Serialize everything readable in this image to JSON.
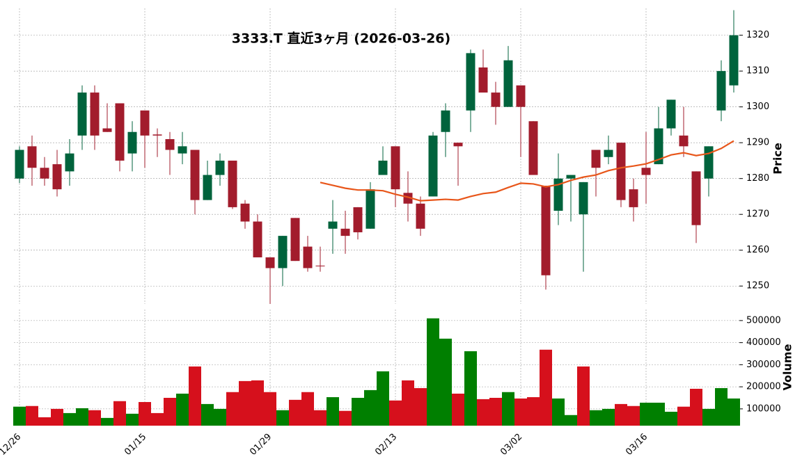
{
  "chart_data": {
    "type": "candlestick",
    "title": "3333.T  直近3ヶ月 (2026-03-26)",
    "categories": [
      "12/26",
      null,
      null,
      null,
      null,
      null,
      null,
      null,
      null,
      null,
      "01/15",
      null,
      null,
      null,
      null,
      null,
      null,
      null,
      null,
      null,
      "01/29",
      null,
      null,
      null,
      null,
      null,
      null,
      null,
      null,
      null,
      "02/13",
      null,
      null,
      null,
      null,
      null,
      null,
      null,
      null,
      null,
      "03/02",
      null,
      null,
      null,
      null,
      null,
      null,
      null,
      null,
      null,
      "03/16",
      null,
      null,
      null,
      null,
      null,
      null,
      null
    ],
    "open": [
      1280,
      1289,
      1283,
      1284,
      1282,
      1292,
      1304,
      1294,
      1301,
      1287,
      1299,
      1292.3,
      1291,
      1287,
      1288,
      1274,
      1281,
      1285,
      1273,
      1268,
      1258,
      1255,
      1269,
      1261,
      1255.7,
      1266,
      1266,
      1272,
      1266,
      1281,
      1289,
      1276,
      1273,
      1275,
      1293,
      1290,
      1299,
      1311,
      1304,
      1300,
      1306,
      1296,
      1278,
      1271,
      1280,
      1270,
      1288,
      1286,
      1290,
      1277,
      1283,
      1284,
      1294,
      1292,
      1282,
      1280,
      1299,
      1306
    ],
    "high": [
      1289,
      1292,
      1286,
      1288,
      1291,
      1306,
      1306,
      1301,
      1301,
      1296,
      1299,
      1294,
      1293,
      1293,
      1288,
      1285,
      1287,
      1285,
      1274,
      1270,
      1258,
      1264,
      1269,
      1264,
      1261,
      1274,
      1271,
      1272,
      1279,
      1289,
      1289,
      1282,
      1275,
      1293,
      1301,
      1290,
      1316,
      1316,
      1307,
      1317,
      1306,
      1296,
      1278,
      1287,
      1281,
      1279,
      1288,
      1292,
      1290,
      1280,
      1293,
      1300,
      1302,
      1300,
      1282,
      1289,
      1313,
      1327
    ],
    "low": [
      1278.7,
      1278,
      1278,
      1275,
      1278,
      1288,
      1288,
      1293,
      1282,
      1282,
      1283,
      1286,
      1281,
      1284,
      1270,
      1274,
      1278,
      1271.5,
      1266,
      1258,
      1245,
      1250,
      1257,
      1254,
      1254,
      1259,
      1259,
      1263,
      1266,
      1281,
      1272,
      1268,
      1264,
      1275,
      1286,
      1278,
      1293,
      1304,
      1295,
      1300,
      1286,
      1281,
      1249,
      1267,
      1268,
      1254,
      1275,
      1284,
      1272,
      1268,
      1273,
      1284,
      1292,
      1286,
      1262,
      1275,
      1296,
      1304
    ],
    "close": [
      1288,
      1283,
      1280,
      1277,
      1287,
      1304,
      1292,
      1293,
      1285,
      1293,
      1292,
      1292,
      1288,
      1289,
      1274,
      1281,
      1285,
      1272,
      1268,
      1258,
      1255,
      1264,
      1257,
      1255,
      1255.5,
      1268,
      1264,
      1265,
      1277,
      1285,
      1277,
      1273,
      1266,
      1292,
      1299,
      1289,
      1315,
      1304,
      1300,
      1313,
      1300,
      1281,
      1253,
      1280,
      1281,
      1279,
      1283,
      1288,
      1274,
      1272,
      1281,
      1294,
      1302,
      1289,
      1267,
      1289,
      1310,
      1320
    ],
    "up_color": "#00633c",
    "down_color": "#a21c2c",
    "ma": {
      "color": "#e8561a",
      "values": [
        null,
        null,
        null,
        null,
        null,
        null,
        null,
        null,
        null,
        null,
        null,
        null,
        null,
        null,
        null,
        null,
        null,
        null,
        null,
        null,
        null,
        null,
        null,
        null,
        1278.9,
        1278.1,
        1277.3,
        1276.8,
        1276.8,
        1276.6,
        1275.6,
        1274.8,
        1273.8,
        1274.0,
        1274.2,
        1274.0,
        1275.0,
        1275.8,
        1276.2,
        1277.5,
        1278.7,
        1278.5,
        1277.7,
        1278.3,
        1279.5,
        1280.4,
        1281.0,
        1282.2,
        1283.0,
        1283.5,
        1284.1,
        1285.3,
        1286.6,
        1287.2,
        1286.4,
        1287.0,
        1288.4,
        1290.5
      ]
    },
    "volume": {
      "values": [
        110000,
        113000,
        62000,
        100000,
        81000,
        103000,
        94000,
        59000,
        135000,
        78000,
        131000,
        81000,
        150000,
        169000,
        292000,
        122000,
        100000,
        176000,
        226000,
        229000,
        176000,
        94000,
        141000,
        176000,
        94000,
        153000,
        91000,
        150000,
        185000,
        270000,
        138000,
        229000,
        194000,
        510000,
        418000,
        169000,
        361000,
        144000,
        150000,
        176000,
        147000,
        153000,
        368000,
        147000,
        72000,
        292000,
        94000,
        100000,
        122000,
        113000,
        128000,
        128000,
        87000,
        110000,
        191000,
        100000,
        194000,
        147000
      ],
      "colors": [
        "#007f00",
        "#d6101c",
        "#d6101c",
        "#d6101c",
        "#007f00",
        "#007f00",
        "#d6101c",
        "#007f00",
        "#d6101c",
        "#007f00",
        "#d6101c",
        "#d6101c",
        "#d6101c",
        "#007f00",
        "#d6101c",
        "#007f00",
        "#007f00",
        "#d6101c",
        "#d6101c",
        "#d6101c",
        "#d6101c",
        "#007f00",
        "#d6101c",
        "#d6101c",
        "#d6101c",
        "#007f00",
        "#d6101c",
        "#007f00",
        "#007f00",
        "#007f00",
        "#d6101c",
        "#d6101c",
        "#d6101c",
        "#007f00",
        "#007f00",
        "#d6101c",
        "#007f00",
        "#d6101c",
        "#d6101c",
        "#007f00",
        "#d6101c",
        "#d6101c",
        "#d6101c",
        "#007f00",
        "#007f00",
        "#d6101c",
        "#007f00",
        "#007f00",
        "#d6101c",
        "#d6101c",
        "#007f00",
        "#007f00",
        "#007f00",
        "#d6101c",
        "#d6101c",
        "#007f00",
        "#007f00",
        "#007f00"
      ]
    },
    "ylim": [
      1245,
      1327.5
    ],
    "yticks": [
      1250,
      1260,
      1270,
      1280,
      1290,
      1300,
      1310,
      1320
    ],
    "ylabel": "Price",
    "volume_ylim": [
      24000,
      550000
    ],
    "volume_yticks": [
      100000,
      200000,
      300000,
      400000,
      500000
    ],
    "volume_ylabel": "Volume",
    "grid": true
  }
}
